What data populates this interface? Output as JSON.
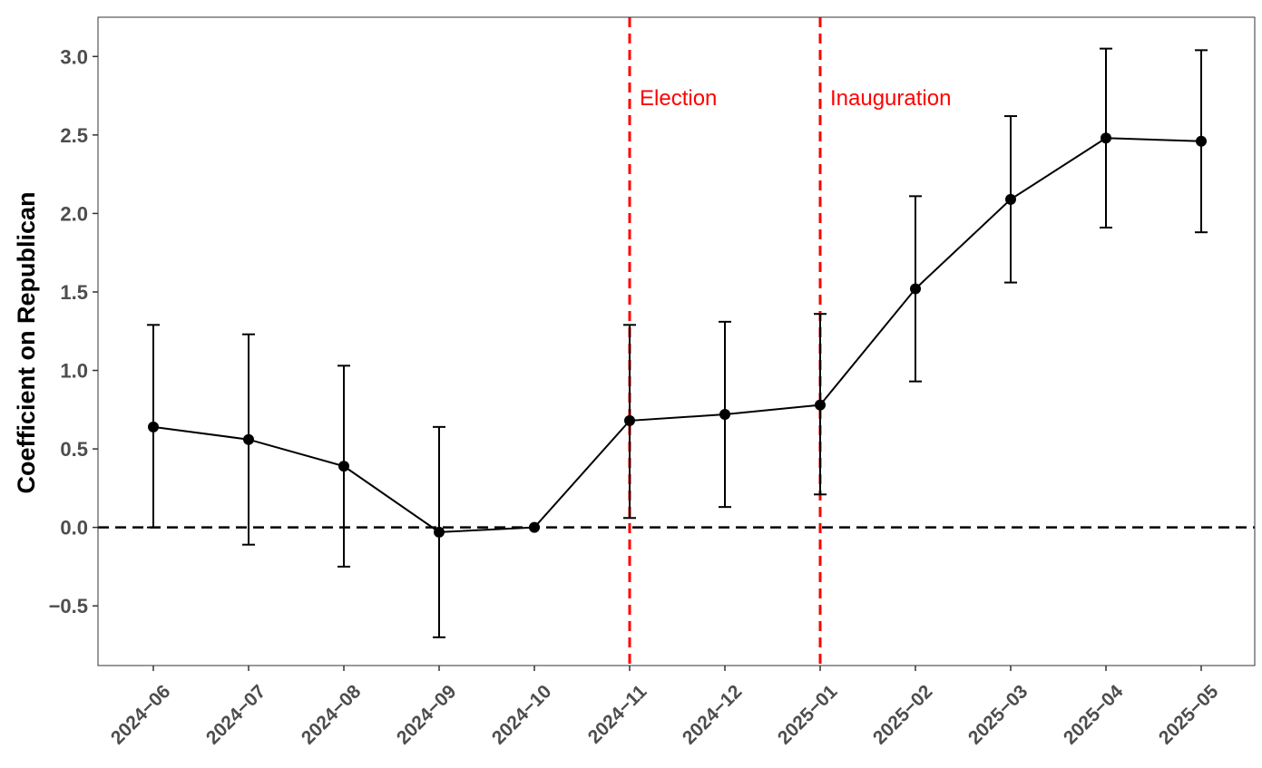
{
  "chart_data": {
    "type": "line",
    "title": "",
    "xlabel": "",
    "ylabel": "Coefficient on Republican",
    "ylim": [
      -0.88,
      3.25
    ],
    "yticks": [
      -0.5,
      0.0,
      0.5,
      1.0,
      1.5,
      2.0,
      2.5,
      3.0
    ],
    "ytick_labels": [
      "−0.5",
      "0.0",
      "0.5",
      "1.0",
      "1.5",
      "2.0",
      "2.5",
      "3.0"
    ],
    "categories": [
      "2024−06",
      "2024−07",
      "2024−08",
      "2024−09",
      "2024−10",
      "2024−11",
      "2024−12",
      "2025−01",
      "2025−02",
      "2025−03",
      "2025−04",
      "2025−05"
    ],
    "series": [
      {
        "values": [
          0.64,
          0.56,
          0.39,
          -0.03,
          0.0,
          0.68,
          0.72,
          0.78,
          1.52,
          2.09,
          2.48,
          2.46
        ],
        "ci_lower": [
          0.0,
          -0.11,
          -0.25,
          -0.7,
          0.0,
          0.06,
          0.13,
          0.21,
          0.93,
          1.56,
          1.91,
          1.88
        ],
        "ci_upper": [
          1.29,
          1.23,
          1.03,
          0.64,
          0.0,
          1.29,
          1.31,
          1.36,
          2.11,
          2.62,
          3.05,
          3.04
        ]
      }
    ],
    "reference_line": {
      "y": 0.0,
      "style": "dashed",
      "color": "#000000"
    },
    "events": [
      {
        "category": "2024−11",
        "label": "Election",
        "color": "#ff0000",
        "style": "dashed"
      },
      {
        "category": "2025−01",
        "label": "Inauguration",
        "color": "#ff0000",
        "style": "dashed"
      }
    ],
    "grid": false,
    "legend": "none"
  }
}
